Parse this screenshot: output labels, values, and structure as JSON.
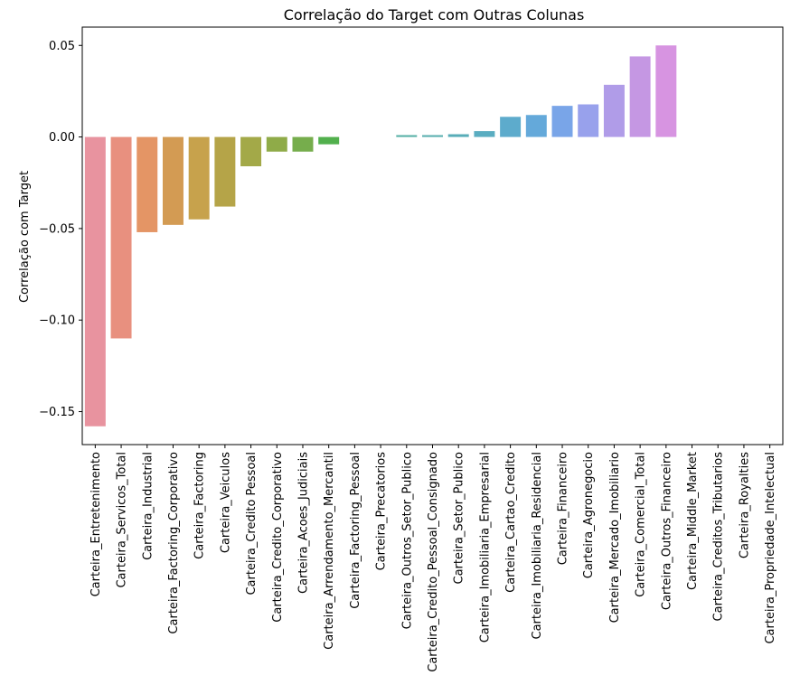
{
  "chart_data": {
    "type": "bar",
    "title": "Correlação do Target com Outras Colunas",
    "xlabel": "",
    "ylabel": "Correlação com Target",
    "ylim": [
      -0.168,
      0.06
    ],
    "yticks": [
      0.05,
      0.0,
      -0.05,
      -0.1,
      -0.15
    ],
    "ytick_labels": [
      "0.05",
      "0.00",
      "−0.05",
      "−0.10",
      "−0.15"
    ],
    "categories": [
      "Carteira_Entretenimento",
      "Carteira_Servicos_Total",
      "Carteira_Industrial",
      "Carteira_Factoring_Corporativo",
      "Carteira_Factoring",
      "Carteira_Veiculos",
      "Carteira_Credito Pessoal",
      "Carteira_Credito_Corporativo",
      "Carteira_Acoes_Judiciais",
      "Carteira_Arrendamento_Mercantil",
      "Carteira_Factoring_Pessoal",
      "Carteira_Precatorios",
      "Carteira_Outros_Setor_Publico",
      "Carteira_Credito_Pessoal_Consignado",
      "Carteira_Setor_Publico",
      "Carteira_Imobiliaria_Empresarial",
      "Carteira_Cartao_Credito",
      "Carteira_Imobiliaria_Residencial",
      "Carteira_Financeiro",
      "Carteira_Agronegocio",
      "Carteira_Mercado_Imobiliario",
      "Carteira_Comercial_Total",
      "Carteira_Outros_Financeiro",
      "Carteira_Middle_Market",
      "Carteira_Creditos_Tributarios",
      "Carteira_Royalties",
      "Carteira_Propriedade_Intelectual"
    ],
    "values": [
      -0.158,
      -0.11,
      -0.052,
      -0.048,
      -0.045,
      -0.038,
      -0.016,
      -0.008,
      -0.008,
      -0.004,
      0.0,
      0.0,
      0.001,
      0.001,
      0.0015,
      0.0032,
      0.011,
      0.012,
      0.017,
      0.0178,
      0.0285,
      0.044,
      0.05,
      0.0,
      0.0,
      0.0,
      0.0
    ],
    "colors": [
      "#e8939f",
      "#e8907f",
      "#e49565",
      "#d39b53",
      "#c7a24c",
      "#b5a448",
      "#a3a948",
      "#8fab48",
      "#76ad4c",
      "#52b04d",
      "#50b181",
      "#52b196",
      "#55afa5",
      "#57aeae",
      "#58adb8",
      "#5aadc1",
      "#5dabcc",
      "#64a9da",
      "#79a5e8",
      "#98a1ec",
      "#b09ce8",
      "#c597e3",
      "#d794e1",
      "#dd90d2",
      "#e38fbf",
      "#e792b0",
      "#ea93a4"
    ]
  }
}
